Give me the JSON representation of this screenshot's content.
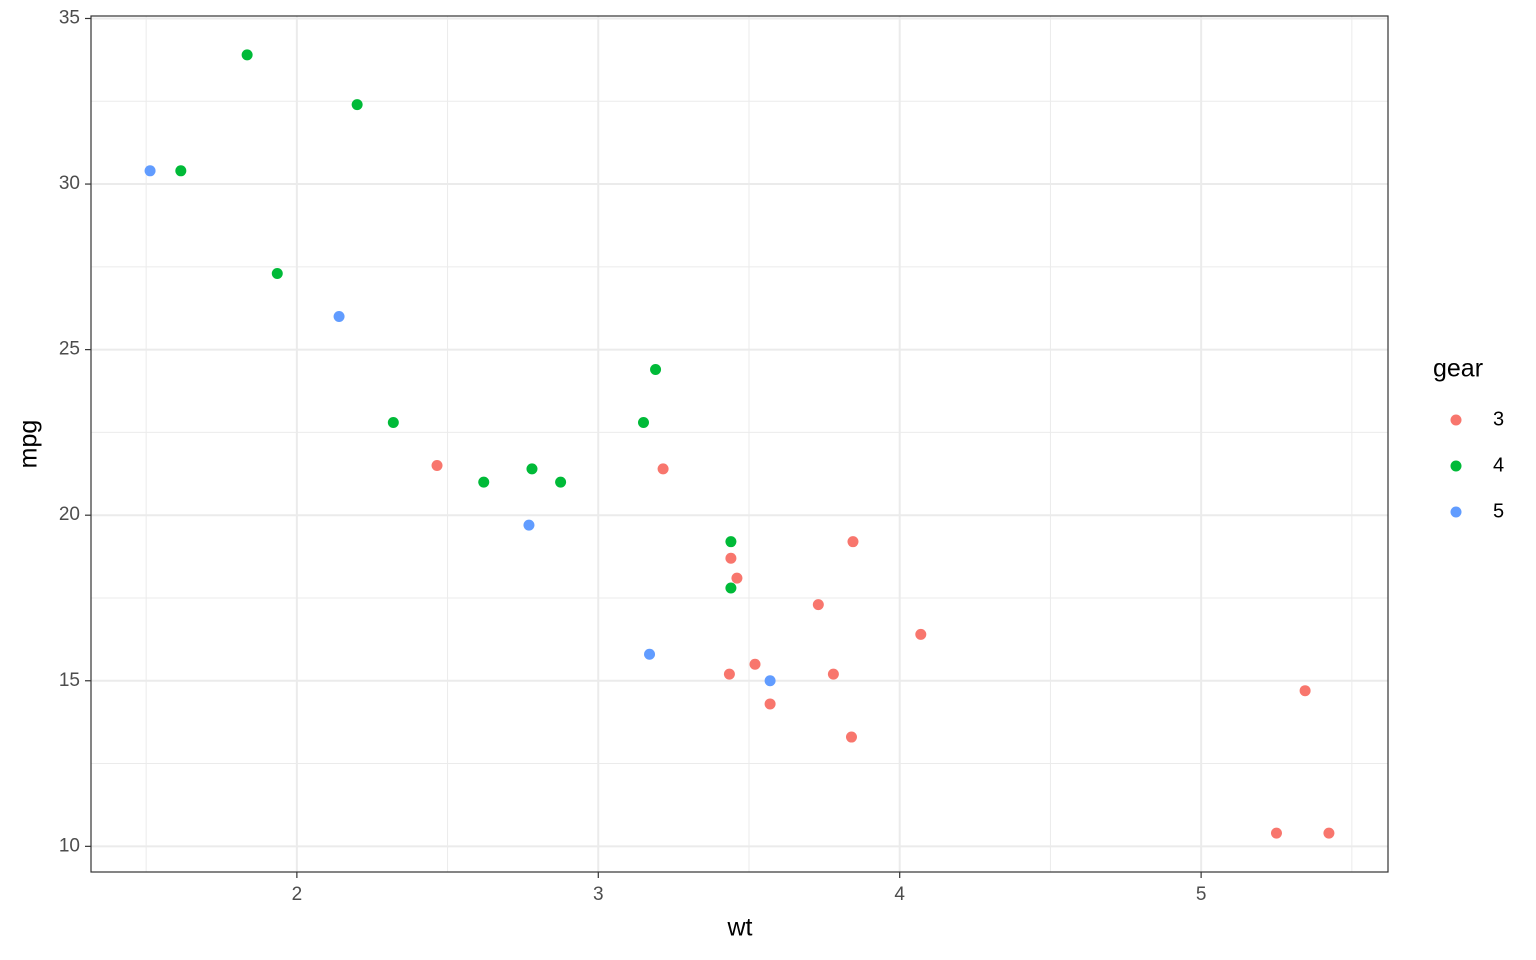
{
  "chart_data": {
    "type": "scatter",
    "x_label": "wt",
    "y_label": "mpg",
    "xlim": [
      1.317,
      5.62
    ],
    "ylim": [
      9.225,
      35.075
    ],
    "xticks": [
      2,
      3,
      4,
      5
    ],
    "yticks": [
      10,
      15,
      20,
      25,
      30,
      35
    ],
    "x_minor": [
      1.5,
      2.5,
      3.5,
      4.5,
      5.5
    ],
    "y_minor": [
      12.5,
      17.5,
      22.5,
      27.5,
      32.5
    ],
    "grid": true,
    "legend_title": "gear",
    "legend_position": "right",
    "series": [
      {
        "name": "3",
        "color": "#f8766d",
        "x": [
          3.215,
          3.44,
          3.46,
          3.57,
          4.07,
          3.73,
          3.78,
          5.25,
          5.424,
          5.345,
          2.465,
          3.52,
          3.435,
          3.84,
          3.845
        ],
        "values": [
          21.4,
          18.7,
          18.1,
          14.3,
          16.4,
          17.3,
          15.2,
          10.4,
          10.4,
          14.7,
          21.5,
          15.5,
          15.2,
          13.3,
          19.2
        ]
      },
      {
        "name": "4",
        "color": "#00ba38",
        "x": [
          2.62,
          2.875,
          2.32,
          3.19,
          3.15,
          3.44,
          3.44,
          2.2,
          1.615,
          1.835,
          1.935,
          2.78
        ],
        "values": [
          21.0,
          21.0,
          22.8,
          24.4,
          22.8,
          19.2,
          17.8,
          32.4,
          30.4,
          33.9,
          27.3,
          21.4
        ]
      },
      {
        "name": "5",
        "color": "#619cff",
        "x": [
          2.14,
          1.513,
          3.17,
          2.77,
          3.57
        ],
        "values": [
          26.0,
          30.4,
          15.8,
          19.7,
          15.0
        ]
      }
    ]
  }
}
